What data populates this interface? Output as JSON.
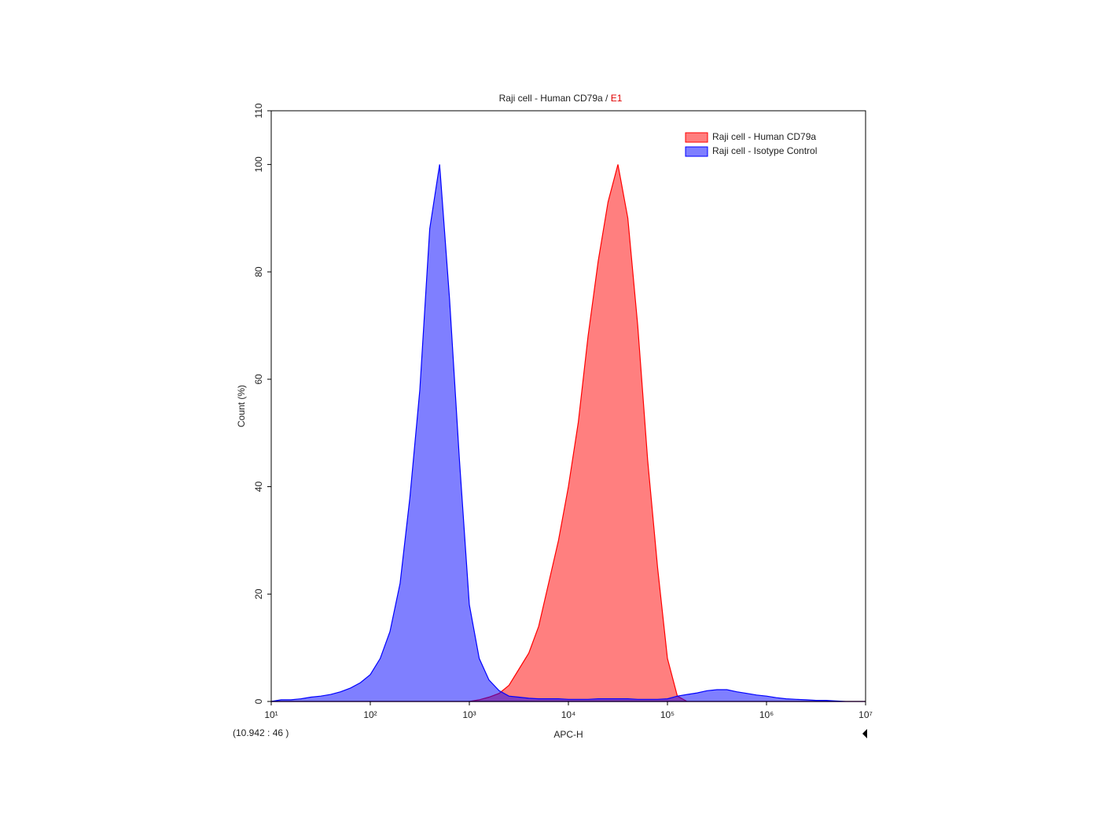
{
  "chart_data": {
    "type": "area",
    "title": "Raji cell - Human CD79a /",
    "title_gate": "E1",
    "x_label": "APC-H",
    "y_label": "Count (%)",
    "annotation": "(10.942 : 46 )",
    "xscale": "log",
    "xlim": [
      10,
      10000000
    ],
    "xticks": [
      {
        "value": 10,
        "label": "10¹"
      },
      {
        "value": 100,
        "label": "10²"
      },
      {
        "value": 1000,
        "label": "10³"
      },
      {
        "value": 10000,
        "label": "10⁴"
      },
      {
        "value": 100000,
        "label": "10⁵"
      },
      {
        "value": 1000000,
        "label": "10⁶"
      },
      {
        "value": 10000000,
        "label": "10⁷"
      }
    ],
    "ylim": [
      0,
      110
    ],
    "yticks": [
      0,
      20,
      40,
      60,
      80,
      100,
      110
    ],
    "legend": "top-right",
    "x": [
      10,
      12.6,
      15.8,
      20,
      25.1,
      31.6,
      39.8,
      50.1,
      63.1,
      79.4,
      100,
      126,
      158,
      200,
      251,
      316,
      398,
      501,
      631,
      794,
      1000,
      1260,
      1580,
      2000,
      2510,
      3160,
      3980,
      5010,
      6310,
      7940,
      10000,
      12600,
      15800,
      20000,
      25100,
      31600,
      39800,
      50100,
      63100,
      79400,
      100000,
      126000,
      158000,
      200000,
      251000,
      316000,
      398000,
      501000,
      631000,
      794000,
      1000000,
      1260000,
      1580000,
      2000000,
      2510000,
      3160000,
      3980000,
      5010000,
      6310000,
      7940000,
      10000000
    ],
    "series": [
      {
        "name": "Raji cell - Human CD79a",
        "color": "#ff0000",
        "values": [
          0,
          0,
          0,
          0,
          0,
          0,
          0,
          0,
          0,
          0,
          0,
          0,
          0,
          0,
          0,
          0,
          0,
          0,
          0,
          0,
          0,
          0.3,
          0.8,
          1.5,
          3,
          6,
          9,
          14,
          22,
          30,
          40,
          52,
          68,
          82,
          93,
          100,
          90,
          70,
          45,
          25,
          8,
          1,
          0,
          0,
          0,
          0,
          0,
          0,
          0,
          0,
          0,
          0,
          0,
          0,
          0,
          0,
          0,
          0,
          0,
          0,
          0
        ]
      },
      {
        "name": "Raji cell - Isotype Control",
        "color": "#0000ff",
        "values": [
          0,
          0.3,
          0.3,
          0.5,
          0.8,
          1,
          1.3,
          1.8,
          2.5,
          3.5,
          5,
          8,
          13,
          22,
          38,
          58,
          88,
          100,
          75,
          45,
          18,
          8,
          4,
          2,
          1,
          0.8,
          0.6,
          0.5,
          0.5,
          0.5,
          0.4,
          0.4,
          0.4,
          0.5,
          0.5,
          0.5,
          0.5,
          0.4,
          0.4,
          0.4,
          0.5,
          1,
          1.3,
          1.6,
          2,
          2.2,
          2.2,
          1.8,
          1.5,
          1.2,
          1,
          0.7,
          0.5,
          0.4,
          0.3,
          0.2,
          0.2,
          0.1,
          0,
          0,
          0
        ]
      }
    ]
  }
}
